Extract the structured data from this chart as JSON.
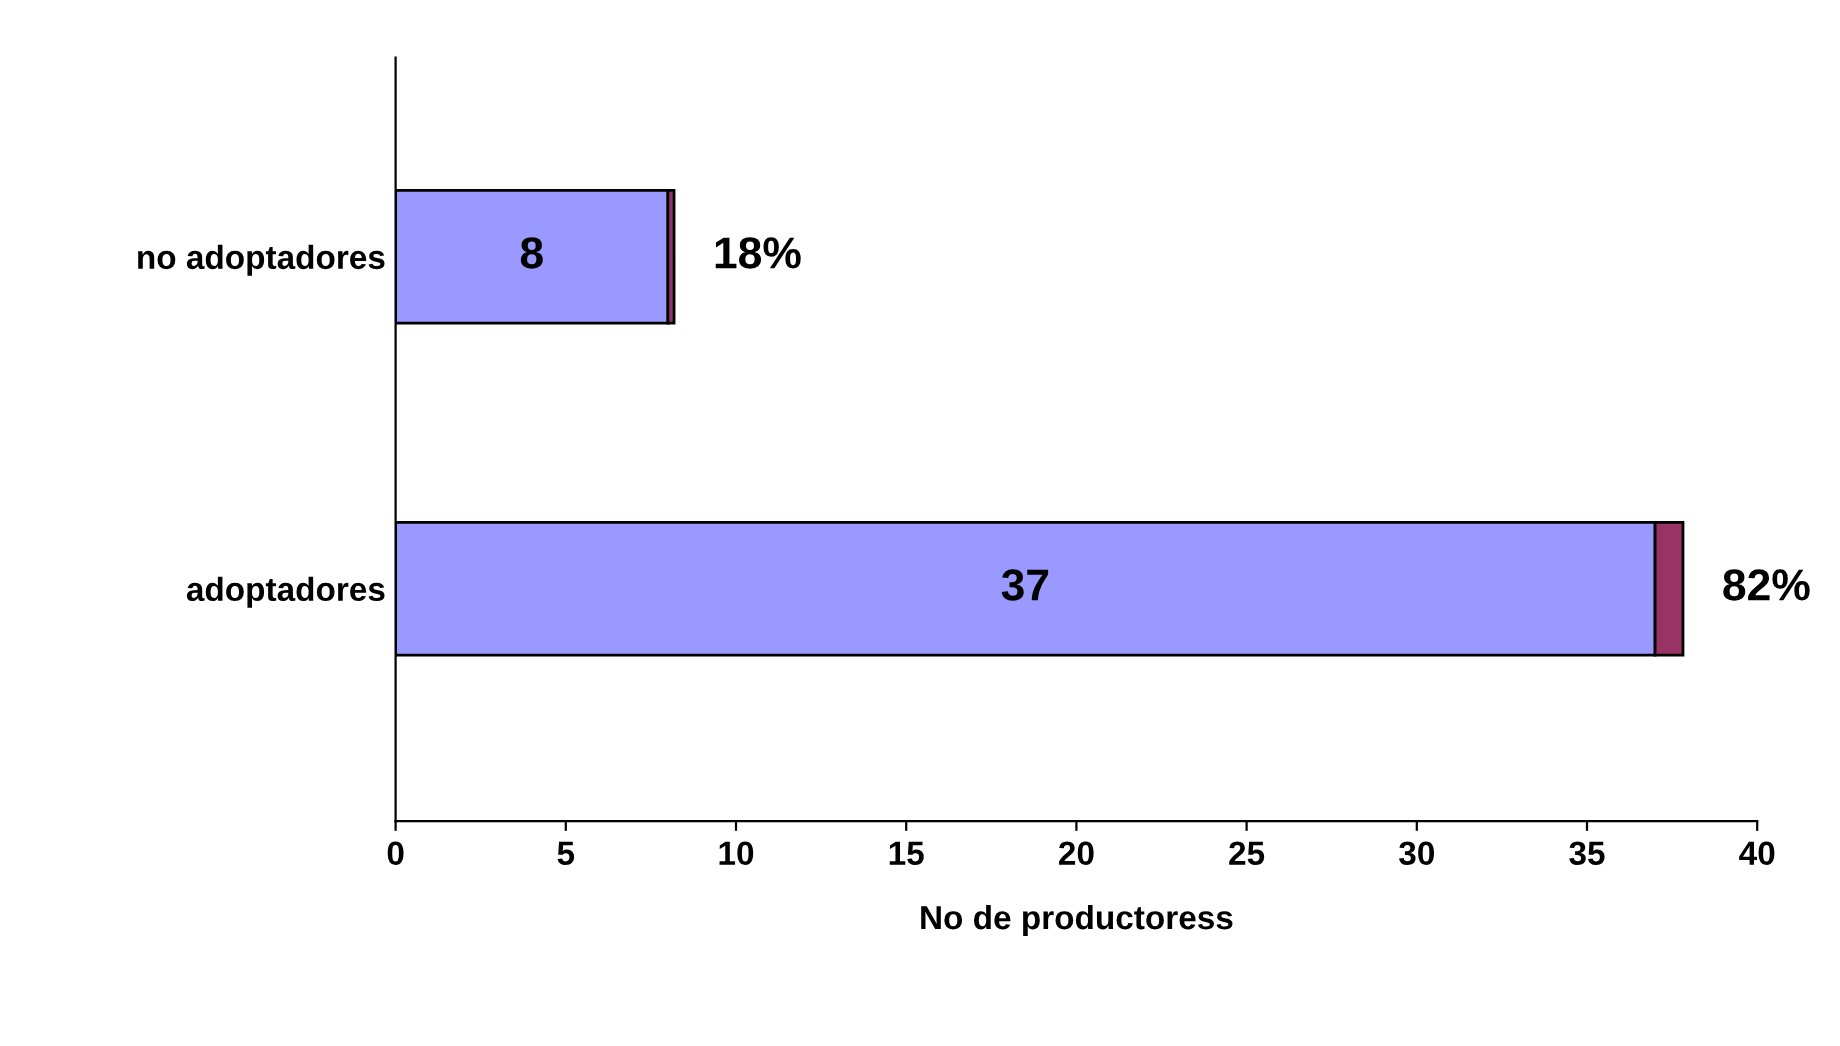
{
  "chart_data": {
    "type": "bar",
    "orientation": "horizontal",
    "stacked": true,
    "categories": [
      "no adoptadores",
      "adoptadores"
    ],
    "series": [
      {
        "color": "#9999ff",
        "values": [
          8,
          37
        ],
        "value_labels": [
          "8",
          "37"
        ]
      },
      {
        "color": "#993366",
        "values": [
          0.18,
          0.82
        ],
        "value_labels": [
          "18%",
          "82%"
        ]
      }
    ],
    "xlabel": "No de productoress",
    "xlim": [
      0,
      40
    ],
    "xticks": [
      0,
      5,
      10,
      15,
      20,
      25,
      30,
      35,
      40
    ],
    "grid": false,
    "legend": false
  }
}
